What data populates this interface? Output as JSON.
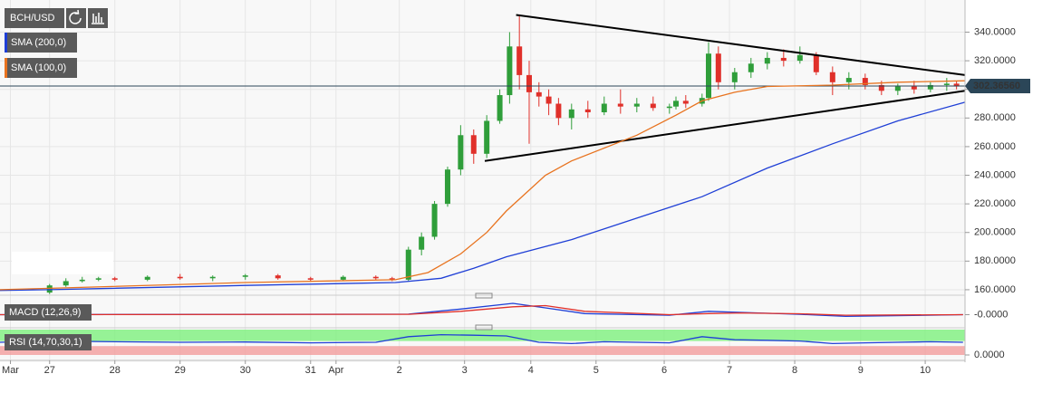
{
  "chart_data": [
    {
      "type": "candlestick",
      "title": "BCH/USD",
      "x": [
        27,
        27.25,
        27.5,
        27.75,
        28,
        28.5,
        29,
        29.5,
        30,
        30.5,
        31,
        31.5,
        32,
        32.25,
        32.5,
        32.7,
        32.9,
        33.1,
        33.3,
        33.5,
        33.7,
        33.9,
        34.05,
        34.2,
        34.35,
        34.5,
        34.65,
        34.8,
        35,
        35.25,
        35.5,
        35.75,
        36,
        36.25,
        36.5,
        36.6,
        36.75,
        37,
        37.1,
        37.25,
        37.5,
        37.75,
        38,
        38.25,
        38.5,
        38.75,
        39,
        39.25,
        39.5,
        39.75,
        40,
        40.25,
        40.5,
        40.75,
        40.9
      ],
      "open": [
        158,
        163,
        166,
        167,
        168,
        167,
        169,
        168,
        169,
        170,
        168,
        167,
        169,
        168,
        167,
        188,
        197,
        220,
        244,
        268,
        255,
        278,
        296,
        330,
        310,
        298,
        295,
        290,
        280,
        286,
        284,
        290,
        288,
        290,
        287,
        288,
        292,
        290,
        294,
        325,
        305,
        312,
        318,
        322,
        320,
        324,
        312,
        305,
        308,
        303,
        299,
        302,
        300,
        303,
        304
      ],
      "high": [
        164,
        168,
        169,
        169,
        169,
        170,
        171,
        170,
        171,
        171,
        169,
        170,
        170,
        169,
        190,
        200,
        222,
        246,
        275,
        272,
        282,
        300,
        340,
        352,
        320,
        305,
        300,
        294,
        290,
        292,
        295,
        300,
        294,
        295,
        290,
        295,
        296,
        297,
        333,
        330,
        315,
        322,
        326,
        328,
        330,
        326,
        316,
        312,
        311,
        306,
        304,
        306,
        305,
        308,
        306
      ],
      "low": [
        157,
        162,
        165,
        166,
        166,
        166,
        167,
        166,
        167,
        167,
        166,
        166,
        167,
        166,
        166,
        184,
        195,
        218,
        240,
        248,
        252,
        276,
        290,
        300,
        262,
        288,
        282,
        275,
        272,
        280,
        282,
        283,
        284,
        285,
        283,
        286,
        287,
        288,
        292,
        300,
        300,
        308,
        314,
        316,
        318,
        310,
        296,
        300,
        300,
        296,
        296,
        297,
        298,
        299,
        300
      ],
      "close": [
        163,
        166,
        167,
        168,
        167,
        169,
        168,
        169,
        170,
        168,
        167,
        169,
        168,
        167,
        188,
        197,
        220,
        244,
        268,
        255,
        278,
        296,
        330,
        310,
        298,
        295,
        290,
        280,
        286,
        284,
        290,
        288,
        290,
        287,
        288,
        292,
        290,
        294,
        325,
        305,
        312,
        318,
        322,
        320,
        324,
        312,
        305,
        308,
        303,
        299,
        302,
        300,
        303,
        304,
        302
      ],
      "up_color": "#2f9e3a",
      "down_color": "#e0302a",
      "series": [
        {
          "name": "SMA (200,0)",
          "color": "#1f3fd6",
          "x": [
            26.24,
            27,
            30,
            32.3,
            33,
            33.5,
            34,
            35,
            36,
            37,
            38,
            39,
            40,
            41.03
          ],
          "values": [
            159.5,
            160,
            163,
            165,
            168,
            175,
            183,
            195,
            210,
            225,
            245,
            262,
            278,
            291
          ]
        },
        {
          "name": "SMA (100,0)",
          "color": "#e8731f",
          "x": [
            26.24,
            27,
            30,
            32.3,
            32.8,
            33.3,
            33.7,
            34,
            34.6,
            35,
            36,
            36.6,
            37,
            37.5,
            38,
            39,
            40,
            41.03
          ],
          "values": [
            160,
            161,
            165,
            167,
            172,
            185,
            200,
            215,
            240,
            250,
            268,
            282,
            292,
            298,
            302,
            303,
            305,
            306
          ]
        }
      ],
      "trendlines": [
        {
          "color": "#000000",
          "x": [
            34.15,
            41.03
          ],
          "values": [
            352,
            310
          ]
        },
        {
          "color": "#000000",
          "x": [
            33.67,
            41.03
          ],
          "values": [
            250,
            299
          ]
        }
      ],
      "last_price": {
        "value": 302.3656,
        "label": "302.36560"
      },
      "xlim": [
        26.24,
        41.03
      ],
      "xticks": [
        {
          "value": 26.4,
          "label": "Mar"
        },
        27,
        28,
        29,
        30,
        31,
        {
          "value": 31.39,
          "label": "Apr"
        },
        {
          "value": 32.36,
          "label": "2"
        },
        {
          "value": 33.36,
          "label": "3"
        },
        {
          "value": 34.375,
          "label": "4"
        },
        {
          "value": 35.375,
          "label": "5"
        },
        {
          "value": 36.42,
          "label": "6"
        },
        {
          "value": 37.42,
          "label": "7"
        },
        {
          "value": 38.42,
          "label": "8"
        },
        {
          "value": 39.43,
          "label": "9"
        },
        {
          "value": 40.42,
          "label": "10"
        }
      ],
      "ylim": [
        158.7,
        359.3
      ],
      "yticks": [
        {
          "value": 160,
          "label": "160.0000"
        },
        {
          "value": 180,
          "label": "180.0000"
        },
        {
          "value": 200,
          "label": "200.0000"
        },
        {
          "value": 220,
          "label": "220.0000"
        },
        {
          "value": 240,
          "label": "240.0000"
        },
        {
          "value": 260,
          "label": "260.0000"
        },
        {
          "value": 280,
          "label": "280.0000"
        },
        {
          "value": 300,
          "label": "300.0000"
        },
        {
          "value": 320,
          "label": "320.0000"
        },
        {
          "value": 340,
          "label": "340.0000"
        }
      ],
      "grid": true
    },
    {
      "type": "line",
      "title": "MACD (12,26,9)",
      "x": [
        26.24,
        32.5,
        33.3,
        34.1,
        34.6,
        35.2,
        36.5,
        37.1,
        37.6,
        38.5,
        39.2,
        41
      ],
      "series": [
        {
          "color": "#1f3fd6",
          "values": [
            0,
            0.5,
            5,
            10,
            6,
            1,
            -0.5,
            3,
            2,
            0.3,
            -1.5,
            0
          ]
        },
        {
          "color": "#e0302a",
          "values": [
            0,
            0.3,
            3,
            7,
            8,
            3,
            0,
            1,
            1.5,
            0.8,
            -0.5,
            0
          ]
        }
      ],
      "ylim": [
        -10,
        14
      ],
      "yticks": [
        {
          "value": 0,
          "label": "-0.0000"
        }
      ]
    },
    {
      "type": "line",
      "title": "RSI (14,70,30,1)",
      "x": [
        26.24,
        27,
        28,
        29,
        30,
        31,
        32,
        32.5,
        33,
        33.5,
        34,
        34.5,
        35,
        35.5,
        36,
        36.5,
        37,
        37.5,
        38,
        38.5,
        39,
        39.5,
        40,
        40.5,
        41
      ],
      "series": [
        {
          "color": "#1f3fd6",
          "values": [
            50,
            55,
            52,
            50,
            51,
            48,
            50,
            72,
            80,
            78,
            75,
            50,
            45,
            52,
            50,
            48,
            72,
            60,
            58,
            55,
            45,
            48,
            50,
            52,
            50
          ]
        }
      ],
      "bands": [
        {
          "from": 55,
          "to": 100,
          "color": "#7df07d"
        },
        {
          "from": 0,
          "to": 35,
          "color": "#f39c9c"
        }
      ],
      "ylim": [
        0,
        100
      ],
      "yticks": [
        {
          "value": 0,
          "label": "0.0000"
        }
      ]
    }
  ]
}
